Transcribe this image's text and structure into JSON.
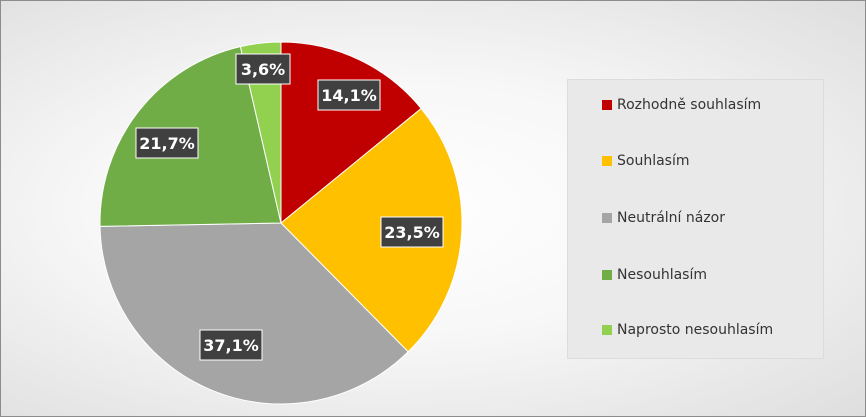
{
  "chart_data": {
    "type": "pie",
    "title": "",
    "start_angle_deg": 0,
    "direction": "clockwise",
    "legend_position": "right",
    "slices": [
      {
        "label": "Rozhodně souhlasím",
        "value": 14.1,
        "display": "14,1%",
        "color": "#c00000"
      },
      {
        "label": "Souhlasím",
        "value": 23.5,
        "display": "23,5%",
        "color": "#ffc000"
      },
      {
        "label": "Neutrální názor",
        "value": 37.1,
        "display": "37,1%",
        "color": "#a5a5a5"
      },
      {
        "label": "Nesouhlasím",
        "value": 21.7,
        "display": "21,7%",
        "color": "#70ad47"
      },
      {
        "label": "Naprosto nesouhlasím",
        "value": 3.6,
        "display": "3,6%",
        "color": "#92d050"
      }
    ]
  },
  "legend": {
    "items": [
      {
        "label": "Rozhodně souhlasím",
        "color": "#c00000"
      },
      {
        "label": "Souhlasím",
        "color": "#ffc000"
      },
      {
        "label": "Neutrální názor",
        "color": "#a5a5a5"
      },
      {
        "label": "Nesouhlasím",
        "color": "#70ad47"
      },
      {
        "label": "Naprosto nesouhlasím",
        "color": "#92d050"
      }
    ]
  }
}
